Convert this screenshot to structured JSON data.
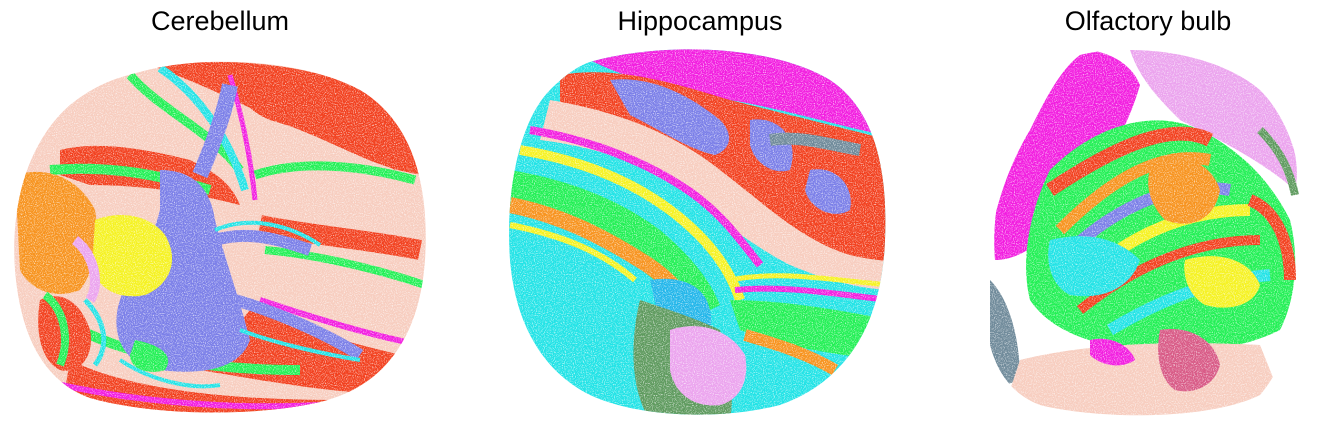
{
  "colors": {
    "pink_beige": "#f7cdbf",
    "red": "#f2401e",
    "green": "#22f055",
    "cyan": "#22e3e6",
    "blue": "#7b7fe8",
    "magenta": "#f21de0",
    "orange": "#f7931e",
    "yellow": "#f5f222",
    "dark_green": "#5e9a5e",
    "lilac": "#eba3ee",
    "slate": "#6f8a9a",
    "rose": "#d85a86",
    "sky": "#22b6ea"
  },
  "panels": [
    {
      "title": "Cerebellum"
    },
    {
      "title": "Hippocampus"
    },
    {
      "title": "Olfactory bulb"
    }
  ]
}
